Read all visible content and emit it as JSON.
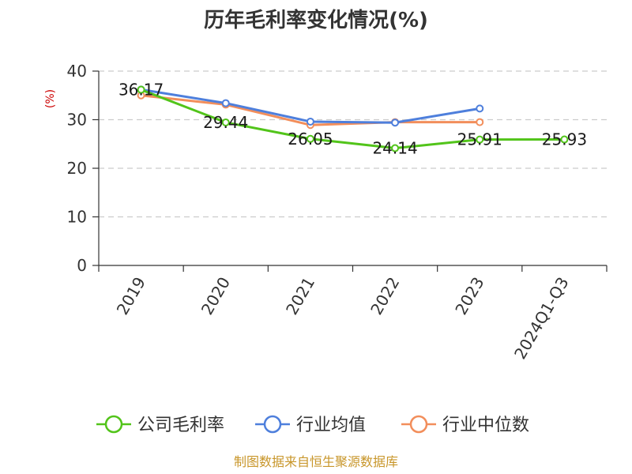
{
  "chart_data": {
    "type": "line",
    "title": "历年毛利率变化情况(%)",
    "unit": "(%)",
    "categories": [
      "2019",
      "2020",
      "2021",
      "2022",
      "2023",
      "2024Q1-Q3"
    ],
    "ylim": [
      0,
      40
    ],
    "yticks": [
      "0",
      "10",
      "20",
      "30",
      "40"
    ],
    "grid": true,
    "legend_position": "bottom",
    "series": [
      {
        "name": "公司毛利率",
        "color": "#52c41a",
        "values": [
          36.17,
          29.44,
          26.05,
          24.14,
          25.91,
          25.93
        ],
        "labels": [
          "36.17",
          "29.44",
          "26.05",
          "24.14",
          "25.91",
          "25.93"
        ]
      },
      {
        "name": "行业均值",
        "color": "#4e7fdc",
        "values": [
          36.2,
          33.4,
          29.6,
          29.4,
          32.3,
          null
        ]
      },
      {
        "name": "行业中位数",
        "color": "#f28e5b",
        "values": [
          35.0,
          33.1,
          28.9,
          29.5,
          29.5,
          null
        ]
      }
    ]
  },
  "footer": {
    "source": "制图数据来自恒生聚源数据库"
  }
}
